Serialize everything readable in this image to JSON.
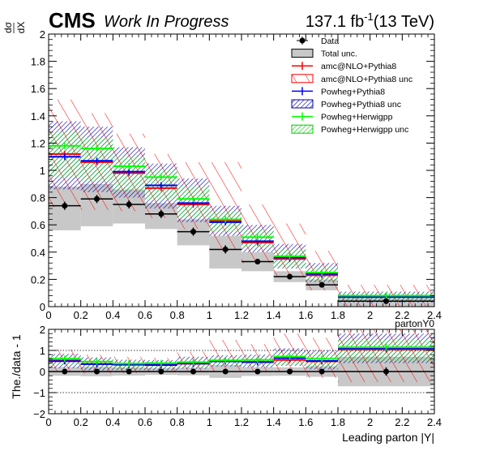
{
  "header": {
    "cms": "CMS",
    "wip": "Work In Progress",
    "lumi_main": "137.1 fb",
    "lumi_exp": "-1",
    "lumi_energy": "(13 TeV)"
  },
  "top_ylabel": {
    "num": "dσ",
    "den": "dX"
  },
  "bottom_ylabel": "The./data - 1",
  "legend": {
    "entries": [
      {
        "key": "data",
        "label": "Data"
      },
      {
        "key": "total",
        "label": "Total unc."
      },
      {
        "key": "amc",
        "label": "amc@NLO+Pythia8"
      },
      {
        "key": "amc_unc",
        "label": "amc@NLO+Pythia8 unc"
      },
      {
        "key": "pwp",
        "label": "Powheg+Pythia8"
      },
      {
        "key": "pwp_unc",
        "label": "Powheg+Pythia8 unc"
      },
      {
        "key": "pwh",
        "label": "Powheg+Herwigpp"
      },
      {
        "key": "pwh_unc",
        "label": "Powheg+Herwigpp unc"
      }
    ]
  },
  "colors": {
    "data": "#000000",
    "total": "#c8c8c8",
    "amc": "#ff0000",
    "pwp": "#0000ff",
    "pwp_hatch": "#0000aa",
    "pwh": "#00ff00",
    "pwh_hatch": "#00cc00"
  },
  "chart_data": [
    {
      "type": "line",
      "panel": "top",
      "xlabel": "partonY0",
      "ylim": [
        0,
        2
      ],
      "xlim": [
        0,
        2.4
      ],
      "yticks": [
        "0",
        "0.2",
        "0.4",
        "0.6",
        "0.8",
        "1",
        "1.2",
        "1.4",
        "1.6",
        "1.8",
        "2"
      ],
      "xticks": [
        "0",
        "0.2",
        "0.4",
        "0.6",
        "0.8",
        "1",
        "1.2",
        "1.4",
        "1.6",
        "1.8",
        "2",
        "2.2",
        "2.4"
      ],
      "bin_edges": [
        0,
        0.2,
        0.4,
        0.6,
        0.8,
        1.0,
        1.2,
        1.4,
        1.6,
        1.8,
        2.4
      ],
      "data": {
        "values": [
          0.74,
          0.79,
          0.75,
          0.68,
          0.55,
          0.42,
          0.33,
          0.22,
          0.16,
          0.04
        ],
        "errors": [
          0.03,
          0.03,
          0.03,
          0.03,
          0.03,
          0.03,
          0.02,
          0.02,
          0.02,
          0.01
        ]
      },
      "total_unc": {
        "low": [
          0.56,
          0.59,
          0.61,
          0.57,
          0.45,
          0.28,
          0.26,
          0.18,
          0.12,
          0.0
        ],
        "high": [
          0.88,
          0.9,
          0.86,
          0.76,
          0.64,
          0.52,
          0.4,
          0.26,
          0.2,
          0.06
        ]
      },
      "series": [
        {
          "key": "amc",
          "name": "amc@NLO+Pythia8",
          "values": [
            1.12,
            1.06,
            0.98,
            0.87,
            0.75,
            0.63,
            0.47,
            0.35,
            0.23,
            0.08
          ],
          "unc_low": [
            0.73,
            0.71,
            0.7,
            0.65,
            0.57,
            0.42,
            0.32,
            0.22,
            0.12,
            0.0
          ],
          "unc_high": [
            1.52,
            1.42,
            1.27,
            1.12,
            1.06,
            1.06,
            0.75,
            0.61,
            0.41,
            0.16
          ]
        },
        {
          "key": "pwp",
          "name": "Powheg+Pythia8",
          "values": [
            1.1,
            1.07,
            0.99,
            0.89,
            0.76,
            0.62,
            0.48,
            0.36,
            0.24,
            0.07
          ],
          "unc_low": [
            0.86,
            0.84,
            0.8,
            0.72,
            0.62,
            0.52,
            0.4,
            0.28,
            0.18,
            0.03
          ],
          "unc_high": [
            1.36,
            1.32,
            1.17,
            1.05,
            0.94,
            0.74,
            0.6,
            0.46,
            0.32,
            0.11
          ]
        },
        {
          "key": "pwh",
          "name": "Powheg+Herwigpp",
          "values": [
            1.18,
            1.16,
            1.03,
            0.95,
            0.79,
            0.64,
            0.51,
            0.37,
            0.25,
            0.08
          ],
          "unc_low": [
            0.95,
            0.92,
            0.85,
            0.78,
            0.65,
            0.55,
            0.43,
            0.29,
            0.19,
            0.04
          ],
          "unc_high": [
            1.28,
            1.24,
            1.1,
            1.0,
            0.88,
            0.7,
            0.56,
            0.42,
            0.29,
            0.1
          ]
        }
      ]
    },
    {
      "type": "line",
      "panel": "bottom",
      "xlabel": "Leading parton |Y|",
      "ylim": [
        -2,
        2
      ],
      "xlim": [
        0,
        2.4
      ],
      "yticks": [
        "−2",
        "−1",
        "0",
        "1",
        "2"
      ],
      "xticks": [
        "0",
        "0.2",
        "0.4",
        "0.6",
        "0.8",
        "1",
        "1.2",
        "1.4",
        "1.6",
        "1.8",
        "2",
        "2.2",
        "2.4"
      ],
      "bin_edges": [
        0,
        0.2,
        0.4,
        0.6,
        0.8,
        1.0,
        1.2,
        1.4,
        1.6,
        1.8,
        2.4
      ],
      "reference_lines": [
        1,
        -1
      ],
      "data": {
        "values": [
          0,
          0,
          0,
          0,
          0,
          0,
          0,
          0,
          0,
          0
        ],
        "errors": [
          0.05,
          0.05,
          0.05,
          0.05,
          0.06,
          0.08,
          0.07,
          0.08,
          0.12,
          0.2
        ]
      },
      "total_unc": {
        "low": [
          -0.2,
          -0.22,
          -0.19,
          -0.16,
          -0.18,
          -0.3,
          -0.21,
          -0.2,
          -0.25,
          -0.7
        ],
        "high": [
          0.2,
          0.22,
          0.19,
          0.16,
          0.18,
          0.3,
          0.21,
          0.2,
          0.25,
          0.7
        ]
      },
      "series": [
        {
          "key": "amc",
          "name": "amc@NLO+Pythia8",
          "values": [
            0.52,
            0.36,
            0.35,
            0.33,
            0.37,
            0.5,
            0.44,
            0.55,
            0.48,
            1.05
          ],
          "unc_low": [
            -0.02,
            -0.1,
            -0.07,
            -0.04,
            0.03,
            0.0,
            0.0,
            0.0,
            -0.3,
            -0.5
          ],
          "unc_high": [
            1.05,
            0.8,
            0.7,
            0.65,
            0.95,
            1.5,
            1.3,
            1.8,
            1.6,
            2.0
          ]
        },
        {
          "key": "pwp",
          "name": "Powheg+Pythia8",
          "values": [
            0.49,
            0.35,
            0.32,
            0.31,
            0.38,
            0.48,
            0.45,
            0.64,
            0.5,
            1.1
          ],
          "unc_low": [
            0.16,
            0.06,
            0.07,
            0.06,
            0.13,
            0.24,
            0.2,
            0.27,
            0.1,
            0.4
          ],
          "unc_high": [
            0.84,
            0.67,
            0.56,
            0.54,
            0.7,
            0.77,
            0.8,
            1.1,
            1.0,
            1.8
          ]
        },
        {
          "key": "pwh",
          "name": "Powheg+Herwigpp",
          "values": [
            0.6,
            0.47,
            0.38,
            0.4,
            0.44,
            0.53,
            0.55,
            0.7,
            0.6,
            1.15
          ],
          "unc_low": [
            0.28,
            0.16,
            0.13,
            0.15,
            0.18,
            0.3,
            0.3,
            0.32,
            0.2,
            0.5
          ],
          "unc_high": [
            0.73,
            0.57,
            0.46,
            0.47,
            0.6,
            0.67,
            0.7,
            0.9,
            0.85,
            1.5
          ]
        }
      ]
    }
  ]
}
